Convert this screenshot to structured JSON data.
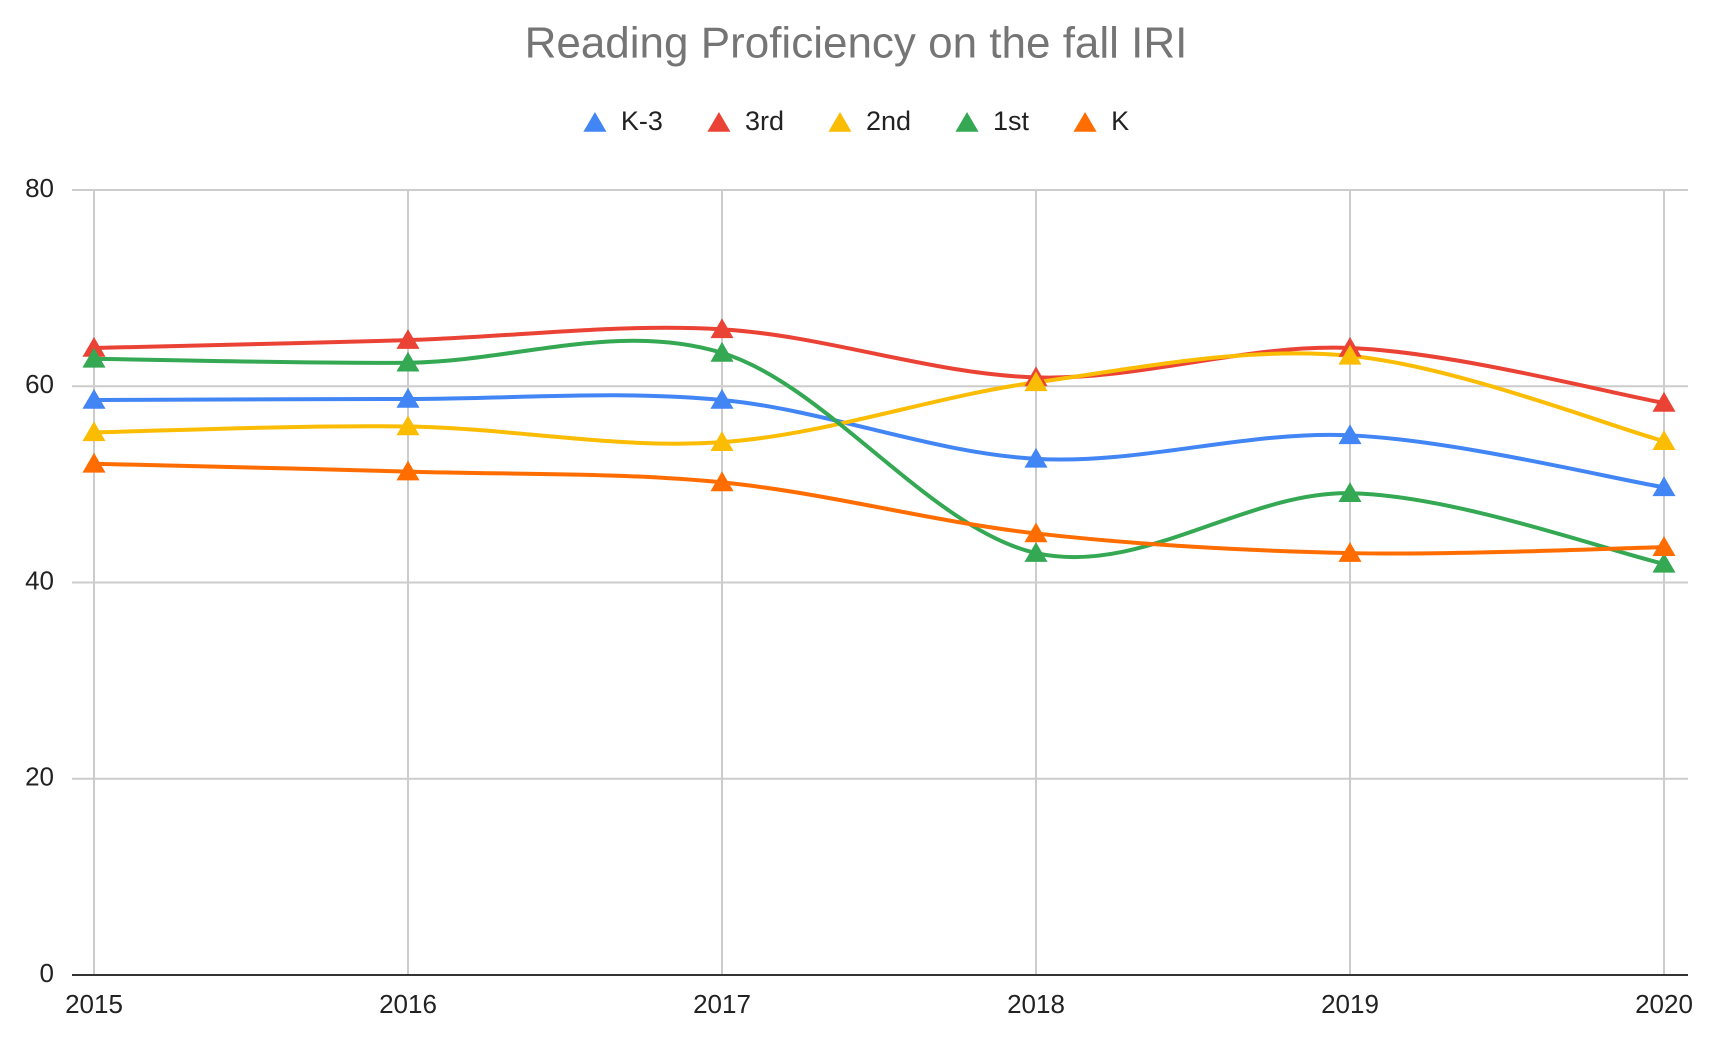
{
  "chart_data": {
    "type": "line",
    "title": "Reading Proficiency on the fall IRI",
    "x": [
      2015,
      2016,
      2017,
      2018,
      2019,
      2020
    ],
    "xlim": [
      2015,
      2020
    ],
    "xticks": [
      2015,
      2016,
      2017,
      2018,
      2019,
      2020
    ],
    "ylim": [
      0,
      80
    ],
    "yticks": [
      0,
      20,
      40,
      60,
      80
    ],
    "grid": true,
    "legend": "top",
    "smooth": true,
    "marker": "triangle",
    "series": [
      {
        "name": "K-3",
        "color": "#4285f4",
        "values": [
          58.6,
          58.7,
          58.6,
          52.6,
          55.0,
          49.7
        ]
      },
      {
        "name": "3rd",
        "color": "#ea4335",
        "values": [
          63.9,
          64.7,
          65.8,
          60.9,
          63.9,
          58.3
        ]
      },
      {
        "name": "2nd",
        "color": "#fbbc04",
        "values": [
          55.3,
          55.9,
          54.3,
          60.4,
          63.1,
          54.4
        ]
      },
      {
        "name": "1st",
        "color": "#34a853",
        "values": [
          62.8,
          62.4,
          63.4,
          43.0,
          49.1,
          41.9
        ]
      },
      {
        "name": "K",
        "color": "#ff6d01",
        "values": [
          52.1,
          51.3,
          50.2,
          45.0,
          43.0,
          43.6
        ]
      }
    ]
  }
}
